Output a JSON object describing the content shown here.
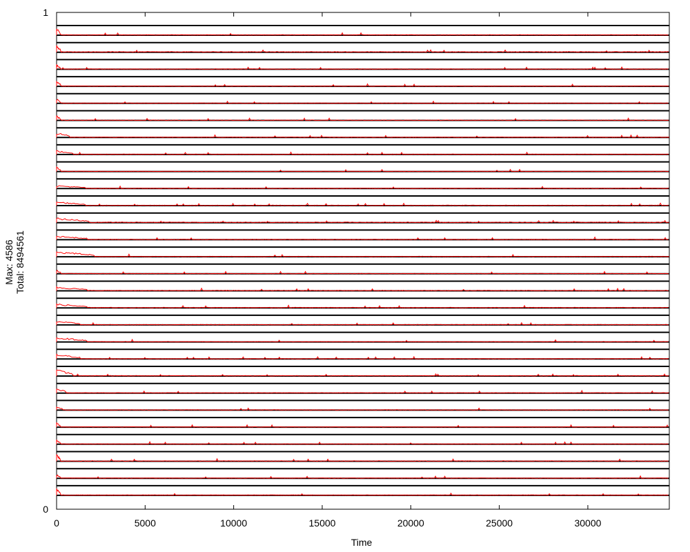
{
  "chart_data": {
    "type": "line",
    "xlabel": "Time",
    "ylabel_lines": [
      "Max: 4586",
      "Total: 8494561"
    ],
    "x_ticks": [
      0,
      5000,
      10000,
      15000,
      20000,
      25000,
      30000
    ],
    "x_tick_labels": [
      "0",
      "5000",
      "10000",
      "15000",
      "20000",
      "25000",
      "30000"
    ],
    "xlim": [
      0,
      34600
    ],
    "ylim": [
      0,
      1
    ],
    "y_ticks": [
      0,
      1
    ],
    "y_tick_labels": [
      "0",
      "1"
    ],
    "grid": false,
    "legend": "none",
    "row_count": 28,
    "baseline_color": "#000000",
    "series_color": "#ff0000",
    "series": [
      {
        "burst_end": 180,
        "burst_peak": 0.9,
        "noise": 0.06
      },
      {
        "burst_end": 200,
        "burst_peak": 0.9,
        "noise": 0.08
      },
      {
        "burst_end": 180,
        "burst_peak": 0.6,
        "noise": 0.05
      },
      {
        "burst_end": 200,
        "burst_peak": 0.7,
        "noise": 0.05
      },
      {
        "burst_end": 180,
        "burst_peak": 0.6,
        "noise": 0.05
      },
      {
        "burst_end": 200,
        "burst_peak": 0.6,
        "noise": 0.05
      },
      {
        "burst_end": 700,
        "burst_peak": 0.6,
        "noise": 0.06
      },
      {
        "burst_end": 900,
        "burst_peak": 0.5,
        "noise": 0.05
      },
      {
        "burst_end": 200,
        "burst_peak": 0.6,
        "noise": 0.05
      },
      {
        "burst_end": 1600,
        "burst_peak": 0.4,
        "noise": 0.06
      },
      {
        "burst_end": 1600,
        "burst_peak": 0.5,
        "noise": 0.06
      },
      {
        "burst_end": 1800,
        "burst_peak": 0.6,
        "noise": 0.08
      },
      {
        "burst_end": 1700,
        "burst_peak": 0.5,
        "noise": 0.06
      },
      {
        "burst_end": 2100,
        "burst_peak": 0.7,
        "noise": 0.06
      },
      {
        "burst_end": 200,
        "burst_peak": 0.5,
        "noise": 0.05
      },
      {
        "burst_end": 1700,
        "burst_peak": 0.5,
        "noise": 0.07
      },
      {
        "burst_end": 1700,
        "burst_peak": 0.5,
        "noise": 0.07
      },
      {
        "burst_end": 1300,
        "burst_peak": 0.5,
        "noise": 0.06
      },
      {
        "burst_end": 1700,
        "burst_peak": 0.6,
        "noise": 0.06
      },
      {
        "burst_end": 1300,
        "burst_peak": 0.6,
        "noise": 0.06
      },
      {
        "burst_end": 900,
        "burst_peak": 0.8,
        "noise": 0.06
      },
      {
        "burst_end": 500,
        "burst_peak": 0.6,
        "noise": 0.06
      },
      {
        "burst_end": 300,
        "burst_peak": 0.5,
        "noise": 0.05
      },
      {
        "burst_end": 180,
        "burst_peak": 0.6,
        "noise": 0.05
      },
      {
        "burst_end": 180,
        "burst_peak": 0.6,
        "noise": 0.05
      },
      {
        "burst_end": 180,
        "burst_peak": 0.9,
        "noise": 0.06
      },
      {
        "burst_end": 180,
        "burst_peak": 0.5,
        "noise": 0.05
      },
      {
        "burst_end": 180,
        "burst_peak": 0.9,
        "noise": 0.06
      }
    ]
  }
}
